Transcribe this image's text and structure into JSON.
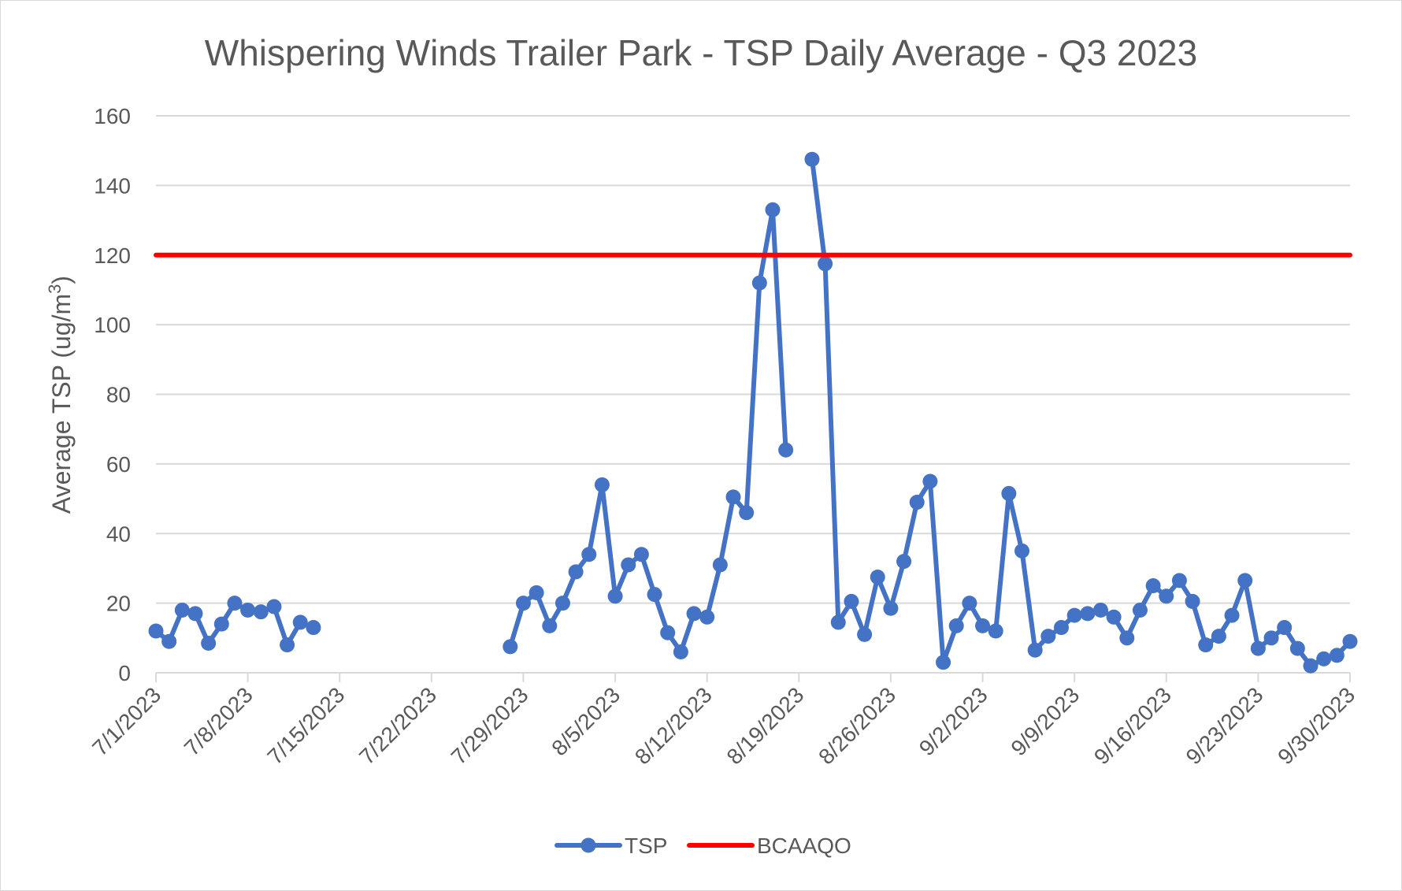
{
  "chart_data": {
    "type": "line",
    "title": "Whispering Winds Trailer Park - TSP Daily Average - Q3 2023",
    "ylabel": "Average TSP (ug/m",
    "ylabel_sup": "3",
    "ylabel_suffix": ")",
    "xlabel": "",
    "ylim": [
      0,
      160
    ],
    "y_ticks": [
      "0",
      "20",
      "40",
      "60",
      "80",
      "100",
      "120",
      "140",
      "160"
    ],
    "x_range": [
      "7/1/2023",
      "9/30/2023"
    ],
    "x_ticks": [
      "7/1/2023",
      "7/8/2023",
      "7/15/2023",
      "7/22/2023",
      "7/29/2023",
      "8/5/2023",
      "8/12/2023",
      "8/19/2023",
      "8/26/2023",
      "9/2/2023",
      "9/9/2023",
      "9/16/2023",
      "9/23/2023",
      "9/30/2023"
    ],
    "grid": true,
    "legend_position": "bottom",
    "series": [
      {
        "name": "TSP",
        "color": "#4472c4",
        "marker": "circle",
        "points": [
          [
            "7/1/2023",
            12
          ],
          [
            "7/2/2023",
            9
          ],
          [
            "7/3/2023",
            18
          ],
          [
            "7/4/2023",
            17
          ],
          [
            "7/5/2023",
            8.5
          ],
          [
            "7/6/2023",
            14
          ],
          [
            "7/7/2023",
            20
          ],
          [
            "7/8/2023",
            18
          ],
          [
            "7/9/2023",
            17.5
          ],
          [
            "7/10/2023",
            19
          ],
          [
            "7/11/2023",
            8
          ],
          [
            "7/12/2023",
            14.5
          ],
          [
            "7/13/2023",
            13
          ],
          null,
          [
            "7/28/2023",
            7.5
          ],
          [
            "7/29/2023",
            20
          ],
          [
            "7/30/2023",
            23
          ],
          [
            "7/31/2023",
            13.5
          ],
          [
            "8/1/2023",
            20
          ],
          [
            "8/2/2023",
            29
          ],
          [
            "8/3/2023",
            34
          ],
          [
            "8/4/2023",
            54
          ],
          [
            "8/5/2023",
            22
          ],
          [
            "8/6/2023",
            31
          ],
          [
            "8/7/2023",
            34
          ],
          [
            "8/8/2023",
            22.5
          ],
          [
            "8/9/2023",
            11.5
          ],
          [
            "8/10/2023",
            6
          ],
          [
            "8/11/2023",
            17
          ],
          [
            "8/12/2023",
            16
          ],
          [
            "8/13/2023",
            31
          ],
          [
            "8/14/2023",
            50.5
          ],
          [
            "8/15/2023",
            46
          ],
          [
            "8/16/2023",
            112
          ],
          [
            "8/17/2023",
            133
          ],
          [
            "8/18/2023",
            64
          ],
          null,
          [
            "8/20/2023",
            147.5
          ],
          [
            "8/21/2023",
            117.5
          ],
          [
            "8/22/2023",
            14.5
          ],
          [
            "8/23/2023",
            20.5
          ],
          [
            "8/24/2023",
            11
          ],
          [
            "8/25/2023",
            27.5
          ],
          [
            "8/26/2023",
            18.5
          ],
          [
            "8/27/2023",
            32
          ],
          [
            "8/28/2023",
            49
          ],
          [
            "8/29/2023",
            55
          ],
          [
            "8/30/2023",
            3
          ],
          [
            "8/31/2023",
            13.5
          ],
          [
            "9/1/2023",
            20
          ],
          [
            "9/2/2023",
            13.5
          ],
          [
            "9/3/2023",
            12
          ],
          [
            "9/4/2023",
            51.5
          ],
          [
            "9/5/2023",
            35
          ],
          [
            "9/6/2023",
            6.5
          ],
          [
            "9/7/2023",
            10.5
          ],
          [
            "9/8/2023",
            13
          ],
          [
            "9/9/2023",
            16.5
          ],
          [
            "9/10/2023",
            17
          ],
          [
            "9/11/2023",
            18
          ],
          [
            "9/12/2023",
            16
          ],
          [
            "9/13/2023",
            10
          ],
          [
            "9/14/2023",
            18
          ],
          [
            "9/15/2023",
            25
          ],
          [
            "9/16/2023",
            22
          ],
          [
            "9/17/2023",
            26.5
          ],
          [
            "9/18/2023",
            20.5
          ],
          [
            "9/19/2023",
            8
          ],
          [
            "9/20/2023",
            10.5
          ],
          [
            "9/21/2023",
            16.5
          ],
          [
            "9/22/2023",
            26.5
          ],
          [
            "9/23/2023",
            7
          ],
          [
            "9/24/2023",
            10
          ],
          [
            "9/25/2023",
            13
          ],
          [
            "9/26/2023",
            7
          ],
          [
            "9/27/2023",
            2
          ],
          [
            "9/28/2023",
            4
          ],
          [
            "9/29/2023",
            5
          ],
          [
            "9/30/2023",
            9
          ]
        ]
      },
      {
        "name": "BCAAQO",
        "color": "#ff0000",
        "marker": "none",
        "points": [
          [
            "7/1/2023",
            120
          ],
          [
            "9/30/2023",
            120
          ]
        ]
      }
    ]
  }
}
